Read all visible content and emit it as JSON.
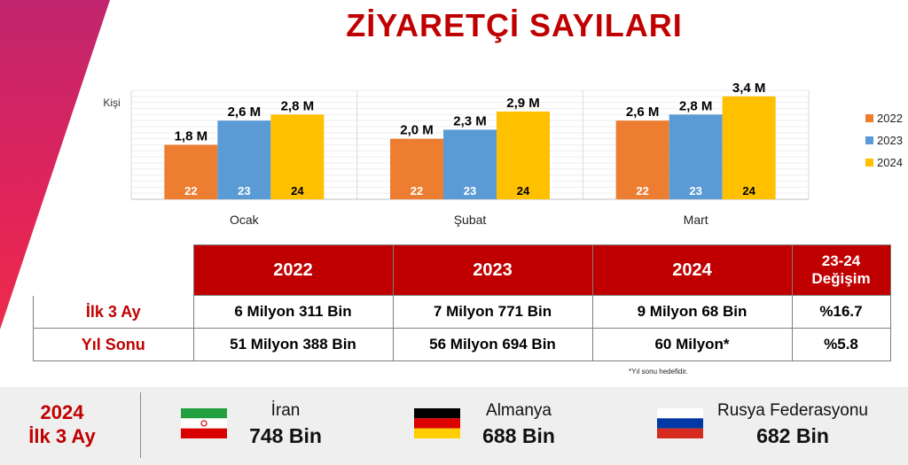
{
  "title": "ZİYARETÇİ SAYILARI",
  "colors": {
    "y2022": "#ed7d31",
    "y2023": "#5b9bd5",
    "y2024": "#ffc000",
    "accent": "#c00000"
  },
  "chart_data": {
    "type": "bar",
    "ylabel": "Kişi",
    "categories": [
      "Ocak",
      "Şubat",
      "Mart"
    ],
    "series": [
      {
        "name": "2022",
        "short": "22",
        "values": [
          1.8,
          2.0,
          2.6
        ],
        "labels": [
          "1,8 M",
          "2,0 M",
          "2,6 M"
        ]
      },
      {
        "name": "2023",
        "short": "23",
        "values": [
          2.6,
          2.3,
          2.8
        ],
        "labels": [
          "2,6 M",
          "2,3 M",
          "2,8 M"
        ]
      },
      {
        "name": "2024",
        "short": "24",
        "values": [
          2.8,
          2.9,
          3.4
        ],
        "labels": [
          "2,8 M",
          "2,9 M",
          "3,4 M"
        ]
      }
    ],
    "legend_position": "right",
    "grid": true
  },
  "table": {
    "headers": [
      "2022",
      "2023",
      "2024"
    ],
    "change_header_line1": "23-24",
    "change_header_line2": "Değişim",
    "rows": [
      {
        "label": "İlk 3 Ay",
        "values": [
          "6 Milyon 311 Bin",
          "7 Milyon 771 Bin",
          "9 Milyon 68 Bin"
        ],
        "change": "%16.7"
      },
      {
        "label": "Yıl Sonu",
        "values": [
          "51 Milyon 388 Bin",
          "56 Milyon 694 Bin",
          "60 Milyon*"
        ],
        "change": "%5.8"
      }
    ],
    "note": "*Yıl sonu hedefidir."
  },
  "bottom": {
    "label_line1": "2024",
    "label_line2": "İlk 3 Ay",
    "countries": [
      {
        "name": "İran",
        "value": "748 Bin",
        "flag": "iran-flag-icon"
      },
      {
        "name": "Almanya",
        "value": "688 Bin",
        "flag": "germany-flag-icon"
      },
      {
        "name": "Rusya Federasyonu",
        "value": "682 Bin",
        "flag": "russia-flag-icon"
      }
    ]
  }
}
